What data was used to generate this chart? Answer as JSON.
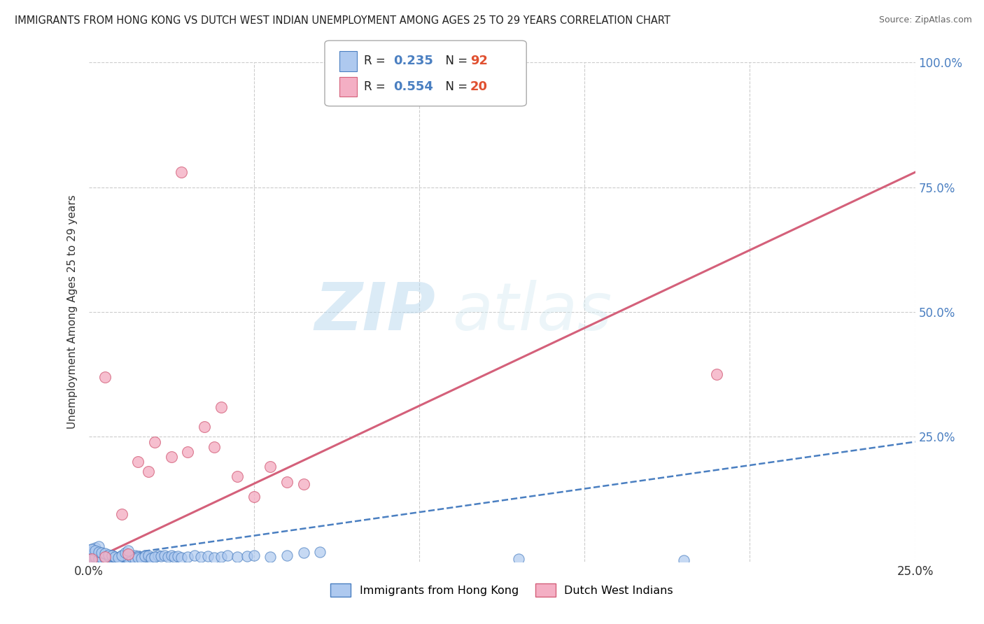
{
  "title": "IMMIGRANTS FROM HONG KONG VS DUTCH WEST INDIAN UNEMPLOYMENT AMONG AGES 25 TO 29 YEARS CORRELATION CHART",
  "source": "Source: ZipAtlas.com",
  "ylabel": "Unemployment Among Ages 25 to 29 years",
  "xlim": [
    0,
    0.25
  ],
  "ylim": [
    0,
    1.0
  ],
  "series1_label": "Immigrants from Hong Kong",
  "series2_label": "Dutch West Indians",
  "series1_color": "#aec9ef",
  "series2_color": "#f4afc4",
  "series1_edge": "#4a7fc1",
  "series2_edge": "#d4607a",
  "trendline1_color": "#4a7fc1",
  "trendline2_color": "#d4607a",
  "watermark_zip": "ZIP",
  "watermark_atlas": "atlas",
  "background_color": "#ffffff",
  "grid_color": "#cccccc",
  "right_ytick_color": "#4a7fc1",
  "N_color": "#e05030",
  "R_val_color": "#4a7fc1",
  "legend_R1": "0.235",
  "legend_N1": "92",
  "legend_R2": "0.554",
  "legend_N2": "20",
  "hk_x": [
    0.001,
    0.002,
    0.001,
    0.003,
    0.002,
    0.004,
    0.003,
    0.001,
    0.002,
    0.001,
    0.003,
    0.002,
    0.004,
    0.001,
    0.002,
    0.003,
    0.001,
    0.002,
    0.004,
    0.003,
    0.005,
    0.004,
    0.006,
    0.005,
    0.007,
    0.006,
    0.008,
    0.007,
    0.009,
    0.008,
    0.01,
    0.009,
    0.011,
    0.01,
    0.012,
    0.011,
    0.013,
    0.012,
    0.014,
    0.013,
    0.015,
    0.014,
    0.016,
    0.015,
    0.017,
    0.016,
    0.018,
    0.017,
    0.019,
    0.018,
    0.02,
    0.019,
    0.021,
    0.02,
    0.022,
    0.023,
    0.024,
    0.025,
    0.026,
    0.027,
    0.028,
    0.03,
    0.032,
    0.034,
    0.036,
    0.038,
    0.04,
    0.042,
    0.045,
    0.048,
    0.05,
    0.055,
    0.06,
    0.065,
    0.07,
    0.001,
    0.002,
    0.003,
    0.001,
    0.002,
    0.003,
    0.004,
    0.005,
    0.006,
    0.007,
    0.008,
    0.009,
    0.01,
    0.011,
    0.012,
    0.13,
    0.18
  ],
  "hk_y": [
    0.005,
    0.008,
    0.01,
    0.006,
    0.012,
    0.008,
    0.01,
    0.015,
    0.007,
    0.009,
    0.011,
    0.006,
    0.013,
    0.008,
    0.01,
    0.007,
    0.012,
    0.009,
    0.011,
    0.006,
    0.01,
    0.008,
    0.012,
    0.007,
    0.009,
    0.011,
    0.008,
    0.013,
    0.006,
    0.01,
    0.012,
    0.007,
    0.009,
    0.011,
    0.008,
    0.013,
    0.01,
    0.007,
    0.012,
    0.009,
    0.011,
    0.006,
    0.01,
    0.008,
    0.012,
    0.007,
    0.009,
    0.011,
    0.008,
    0.013,
    0.01,
    0.007,
    0.012,
    0.009,
    0.011,
    0.013,
    0.01,
    0.012,
    0.009,
    0.011,
    0.008,
    0.01,
    0.012,
    0.009,
    0.011,
    0.008,
    0.01,
    0.012,
    0.009,
    0.011,
    0.013,
    0.01,
    0.012,
    0.018,
    0.02,
    0.025,
    0.028,
    0.03,
    0.025,
    0.022,
    0.02,
    0.018,
    0.016,
    0.014,
    0.012,
    0.01,
    0.008,
    0.012,
    0.018,
    0.022,
    0.005,
    0.003
  ],
  "dwi_x": [
    0.001,
    0.005,
    0.005,
    0.01,
    0.012,
    0.015,
    0.018,
    0.02,
    0.025,
    0.028,
    0.03,
    0.035,
    0.038,
    0.04,
    0.045,
    0.05,
    0.055,
    0.06,
    0.065,
    0.19
  ],
  "dwi_y": [
    0.005,
    0.37,
    0.01,
    0.095,
    0.015,
    0.2,
    0.18,
    0.24,
    0.21,
    0.78,
    0.22,
    0.27,
    0.23,
    0.31,
    0.17,
    0.13,
    0.19,
    0.16,
    0.155,
    0.375
  ],
  "hk_trendline_x0": 0.0,
  "hk_trendline_y0": 0.005,
  "hk_trendline_x1": 0.25,
  "hk_trendline_y1": 0.24,
  "dwi_trendline_x0": 0.0,
  "dwi_trendline_y0": 0.0,
  "dwi_trendline_x1": 0.25,
  "dwi_trendline_y1": 0.78
}
